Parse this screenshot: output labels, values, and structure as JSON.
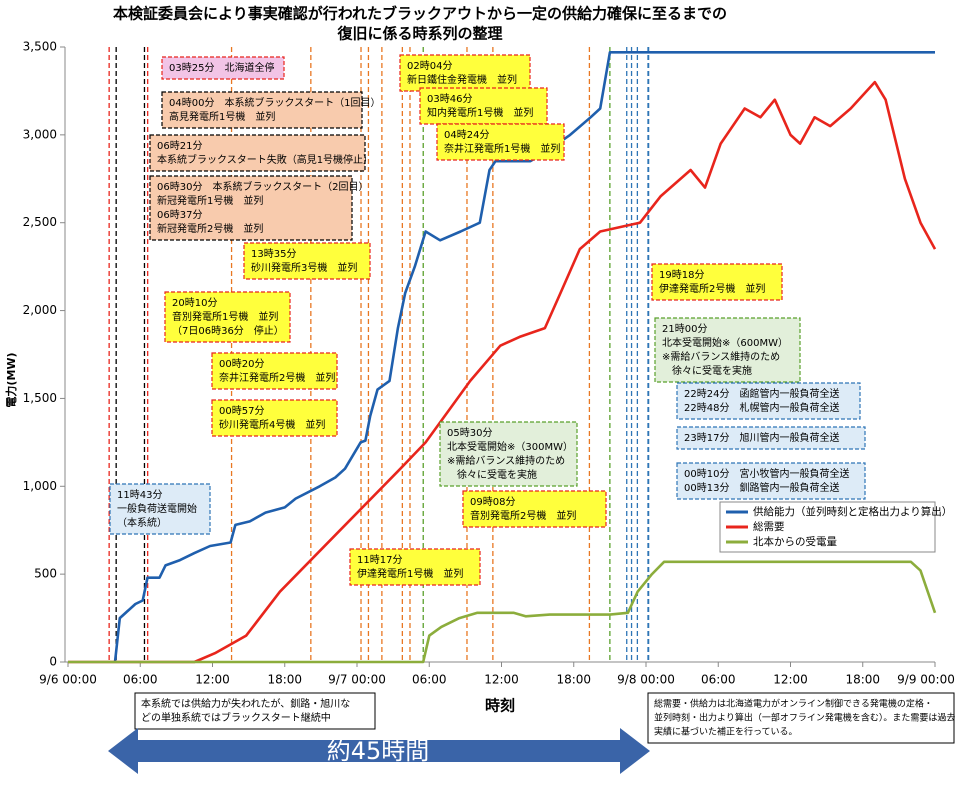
{
  "chart_data": {
    "type": "line",
    "title": [
      "本検証委員会により事実確認が行われたブラックアウトから一定の供給力確保に至るまでの",
      "復旧に係る時系列の整理"
    ],
    "x_label": "時刻",
    "y_label": "電力(MW)",
    "xlim": [
      "9/6 00:00",
      "9/9 00:00"
    ],
    "xticks": [
      {
        "value": "9/6 00:00",
        "label": "9/6 00:00"
      },
      {
        "value": "9/6 06:00",
        "label": "06:00"
      },
      {
        "value": "9/6 12:00",
        "label": "12:00"
      },
      {
        "value": "9/6 18:00",
        "label": "18:00"
      },
      {
        "value": "9/7 00:00",
        "label": "9/7 00:00"
      },
      {
        "value": "9/7 06:00",
        "label": "06:00"
      },
      {
        "value": "9/7 12:00",
        "label": "12:00"
      },
      {
        "value": "9/7 18:00",
        "label": "18:00"
      },
      {
        "value": "9/8 00:00",
        "label": "9/8 00:00"
      },
      {
        "value": "9/8 06:00",
        "label": "06:00"
      },
      {
        "value": "9/8 12:00",
        "label": "12:00"
      },
      {
        "value": "9/8 18:00",
        "label": "18:00"
      },
      {
        "value": "9/9 00:00",
        "label": "9/9 00:00"
      }
    ],
    "ylim": [
      0,
      3500
    ],
    "yticks": [
      0,
      500,
      {
        "value": 1000,
        "label": "1,000"
      },
      {
        "value": 1500,
        "label": "1,500"
      },
      {
        "value": 2000,
        "label": "2,000"
      },
      {
        "value": 2500,
        "label": "2,500"
      },
      {
        "value": 3000,
        "label": "3,000"
      },
      {
        "value": 3500,
        "label": "3,500"
      }
    ],
    "grid": false,
    "legend": "right",
    "series": [
      {
        "name": "供給能力（並列時刻と定格出力より算出）",
        "color": "#1f5fad",
        "x": [
          "9/6 03:54",
          "9/6 04:18",
          "9/6 05:36",
          "9/6 06:12",
          "9/6 06:36",
          "9/6 07:36",
          "9/6 08:06",
          "9/6 09:18",
          "9/6 10:30",
          "9/6 11:48",
          "9/6 13:30",
          "9/6 13:54",
          "9/6 15:06",
          "9/6 16:24",
          "9/6 18:00",
          "9/6 18:54",
          "9/6 20:54",
          "9/6 22:12",
          "9/6 23:00",
          "9/7 00:18",
          "9/7 00:42",
          "9/7 01:06",
          "9/7 01:42",
          "9/7 02:42",
          "9/7 03:24",
          "9/7 04:00",
          "9/7 04:48",
          "9/7 05:42",
          "9/7 06:54",
          "9/7 08:36",
          "9/7 10:12",
          "9/7 11:00",
          "9/7 11:30",
          "9/7 14:24",
          "9/7 15:36",
          "9/7 17:42",
          "9/7 19:24",
          "9/7 20:12",
          "9/7 21:00",
          "9/9 00:00"
        ],
        "values": [
          0,
          250,
          330,
          350,
          480,
          480,
          550,
          580,
          620,
          660,
          680,
          780,
          800,
          850,
          880,
          930,
          1000,
          1050,
          1100,
          1250,
          1260,
          1400,
          1550,
          1600,
          1900,
          2100,
          2250,
          2450,
          2400,
          2450,
          2500,
          2800,
          2850,
          2850,
          2900,
          3000,
          3100,
          3150,
          3470,
          3470
        ]
      },
      {
        "name": "総需要",
        "color": "#e8251c",
        "x": [
          "9/6 00:00",
          "9/6 10:30",
          "9/6 12:12",
          "9/6 14:48",
          "9/6 17:36",
          "9/6 22:36",
          "9/7 03:36",
          "9/7 05:42",
          "9/7 09:24",
          "9/7 11:54",
          "9/7 13:30",
          "9/7 15:36",
          "9/7 16:54",
          "9/7 18:30",
          "9/7 20:12",
          "9/7 23:30",
          "9/8 01:12",
          "9/8 03:42",
          "9/8 04:54",
          "9/8 06:12",
          "9/8 08:12",
          "9/8 09:30",
          "9/8 10:42",
          "9/8 12:00",
          "9/8 12:48",
          "9/8 14:00",
          "9/8 15:18",
          "9/8 17:00",
          "9/8 19:00",
          "9/8 19:54",
          "9/8 21:30",
          "9/8 22:48",
          "9/9 00:00"
        ],
        "values": [
          0,
          0,
          50,
          150,
          400,
          750,
          1100,
          1250,
          1600,
          1800,
          1850,
          1900,
          2100,
          2350,
          2450,
          2500,
          2650,
          2800,
          2700,
          2950,
          3150,
          3100,
          3200,
          3000,
          2950,
          3100,
          3050,
          3150,
          3300,
          3200,
          2750,
          2500,
          2350
        ]
      },
      {
        "name": "北本からの受電量",
        "color": "#8cad3c",
        "x": [
          "9/6 00:00",
          "9/7 05:30",
          "9/7 06:00",
          "9/7 07:00",
          "9/7 08:30",
          "9/7 10:00",
          "9/7 13:00",
          "9/7 14:00",
          "9/7 16:00",
          "9/7 21:00",
          "9/7 22:30",
          "9/7 23:18",
          "9/8 00:30",
          "9/8 01:30",
          "9/8 22:00",
          "9/8 22:48",
          "9/9 00:00"
        ],
        "values": [
          0,
          0,
          150,
          200,
          250,
          280,
          280,
          260,
          270,
          270,
          280,
          400,
          500,
          570,
          570,
          520,
          280
        ]
      }
    ],
    "event_lines": [
      {
        "x": "9/6 03:25",
        "color": "#e8251c"
      },
      {
        "x": "9/6 04:00",
        "color": "#000000"
      },
      {
        "x": "9/6 06:21",
        "color": "#000000"
      },
      {
        "x": "9/6 06:37",
        "color": "#e8251c"
      },
      {
        "x": "9/6 13:35",
        "color": "#e87722"
      },
      {
        "x": "9/6 20:10",
        "color": "#e87722"
      },
      {
        "x": "9/7 00:20",
        "color": "#e87722"
      },
      {
        "x": "9/7 00:57",
        "color": "#e87722"
      },
      {
        "x": "9/7 02:04",
        "color": "#e87722"
      },
      {
        "x": "9/7 03:46",
        "color": "#e87722"
      },
      {
        "x": "9/7 04:24",
        "color": "#e87722"
      },
      {
        "x": "9/7 05:30",
        "color": "#5aa02c"
      },
      {
        "x": "9/7 09:08",
        "color": "#e87722"
      },
      {
        "x": "9/7 11:17",
        "color": "#e87722"
      },
      {
        "x": "9/7 19:18",
        "color": "#e87722"
      },
      {
        "x": "9/7 21:00",
        "color": "#5aa02c"
      },
      {
        "x": "9/7 22:24",
        "color": "#2e75b6"
      },
      {
        "x": "9/7 22:48",
        "color": "#2e75b6"
      },
      {
        "x": "9/7 23:17",
        "color": "#2e75b6"
      },
      {
        "x": "9/8 00:10",
        "color": "#2e75b6"
      },
      {
        "x": "9/8 00:13",
        "color": "#2e75b6"
      }
    ],
    "annotations": [
      {
        "lines": [
          "03時25分　北海道全停"
        ]
      },
      {
        "lines": [
          "04時00分　本系統ブラックスタート（1回目）",
          "高見発電所1号機　並列"
        ]
      },
      {
        "lines": [
          "06時21分",
          "本系統ブラックスタート失敗（高見1号機停止）"
        ]
      },
      {
        "lines": [
          "06時30分　本系統ブラックスタート（2回目）",
          "新冠発電所1号機　並列",
          "06時37分",
          "新冠発電所2号機　並列"
        ]
      },
      {
        "lines": [
          "02時04分",
          "新日鐵住金発電機　並列"
        ]
      },
      {
        "lines": [
          "03時46分",
          "知内発電所1号機　並列"
        ]
      },
      {
        "lines": [
          "04時24分",
          "奈井江発電所1号機　並列"
        ]
      },
      {
        "lines": [
          "13時35分",
          "砂川発電所3号機　並列"
        ]
      },
      {
        "lines": [
          "20時10分",
          "音別発電所1号機　並列",
          "（7日06時36分　停止）"
        ]
      },
      {
        "lines": [
          "00時20分",
          "奈井江発電所2号機　並列"
        ]
      },
      {
        "lines": [
          "00時57分",
          "砂川発電所4号機　並列"
        ]
      },
      {
        "lines": [
          "05時30分",
          "北本受電開始※（300MW）",
          "※需給バランス維持のため",
          "　徐々に受電を実施"
        ]
      },
      {
        "lines": [
          "09時08分",
          "音別発電所2号機　並列"
        ]
      },
      {
        "lines": [
          "11時17分",
          "伊達発電所1号機　並列"
        ]
      },
      {
        "lines": [
          "11時43分",
          "一般負荷送電開始",
          "（本系統）"
        ]
      },
      {
        "lines": [
          "19時18分",
          "伊達発電所2号機　並列"
        ]
      },
      {
        "lines": [
          "21時00分",
          "北本受電開始※（600MW）",
          "※需給バランス維持のため",
          "　徐々に受電を実施"
        ]
      },
      {
        "lines": [
          "22時24分　函館管内一般負荷全送",
          "22時48分　札幌管内一般負荷全送"
        ]
      },
      {
        "lines": [
          "23時17分　旭川管内一般負荷全送"
        ]
      },
      {
        "lines": [
          "00時10分　宮小牧管内一般負荷全送",
          "00時13分　釧路管内一般負荷全送"
        ]
      }
    ],
    "notes": [
      {
        "lines": [
          "本系統では供給力が失われたが、釧路・旭川な",
          "どの単独系統ではブラックスタート継続中"
        ]
      },
      {
        "lines": [
          "総需要・供給力は北海道電力がオンライン制御できる発電機の定格・",
          "並列時刻・出力より算出（一部オフライン発電機を含む）。また需要は過去",
          "実績に基づいた補正を行っている。"
        ]
      }
    ],
    "duration_label": "約45時間"
  }
}
